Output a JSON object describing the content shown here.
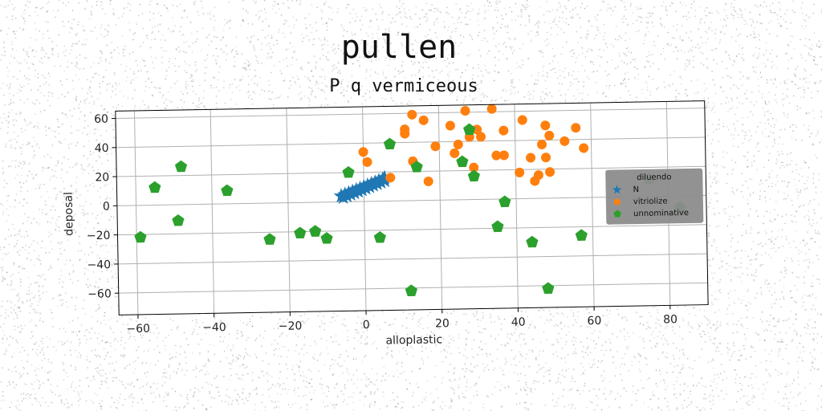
{
  "chart_data": {
    "type": "scatter",
    "title": "pullen",
    "subtitle": "P q vermiceous",
    "xlabel": "alloplastic",
    "ylabel": "deposal",
    "xlim": [
      -65,
      90
    ],
    "ylim": [
      -75,
      65
    ],
    "xticks": [
      -60,
      -40,
      -20,
      0,
      20,
      40,
      60,
      80
    ],
    "yticks": [
      -60,
      -40,
      -20,
      0,
      20,
      40,
      60
    ],
    "grid": true,
    "legend": {
      "title": "diluendo",
      "placement": "center-right",
      "background": "#8c8c8c"
    },
    "series": [
      {
        "name": "N",
        "marker": "star",
        "color": "#1f77b4",
        "points": [
          [
            -6,
            4
          ],
          [
            -5,
            5
          ],
          [
            -4,
            6
          ],
          [
            -3,
            7
          ],
          [
            -2,
            8
          ],
          [
            -1,
            9
          ],
          [
            0,
            10
          ],
          [
            1,
            11
          ],
          [
            2,
            12
          ],
          [
            3,
            13
          ],
          [
            4,
            14
          ],
          [
            5,
            15
          ],
          [
            5.5,
            16
          ],
          [
            -5.5,
            3
          ],
          [
            -4.5,
            4
          ],
          [
            -3.5,
            5
          ],
          [
            -2.5,
            6
          ],
          [
            -1.5,
            7
          ],
          [
            -0.5,
            8
          ],
          [
            0.5,
            9
          ],
          [
            1.5,
            10
          ],
          [
            2.5,
            11
          ],
          [
            3.5,
            12
          ],
          [
            4.5,
            13
          ],
          [
            5.5,
            14
          ]
        ]
      },
      {
        "name": "vitriolize",
        "marker": "circle",
        "color": "#ff7f0e",
        "points": [
          [
            0,
            34
          ],
          [
            1,
            27
          ],
          [
            7,
            16
          ],
          [
            11,
            49
          ],
          [
            11,
            46
          ],
          [
            13,
            59
          ],
          [
            13,
            27
          ],
          [
            16,
            55
          ],
          [
            17,
            13
          ],
          [
            19,
            37
          ],
          [
            23,
            51
          ],
          [
            24,
            32
          ],
          [
            25,
            38
          ],
          [
            27,
            61
          ],
          [
            28,
            43
          ],
          [
            29,
            22
          ],
          [
            30,
            48
          ],
          [
            31,
            43
          ],
          [
            34,
            62
          ],
          [
            35,
            30
          ],
          [
            37,
            30
          ],
          [
            37,
            47
          ],
          [
            41,
            18
          ],
          [
            42,
            54
          ],
          [
            44,
            28
          ],
          [
            45,
            12
          ],
          [
            46,
            16
          ],
          [
            47,
            37
          ],
          [
            48,
            50
          ],
          [
            48,
            28
          ],
          [
            49,
            43
          ],
          [
            49,
            18
          ],
          [
            53,
            39
          ],
          [
            56,
            48
          ],
          [
            58,
            34
          ]
        ]
      },
      {
        "name": "unnominative",
        "marker": "pentagon",
        "color": "#2ca02c",
        "points": [
          [
            -59,
            -22
          ],
          [
            -55,
            12
          ],
          [
            -49,
            -11
          ],
          [
            -48,
            26
          ],
          [
            -36,
            9
          ],
          [
            -25,
            -25
          ],
          [
            -17,
            -21
          ],
          [
            -13,
            -20
          ],
          [
            -10,
            -25
          ],
          [
            -4,
            20
          ],
          [
            4,
            -25
          ],
          [
            7,
            39
          ],
          [
            12,
            -62
          ],
          [
            14,
            23
          ],
          [
            26,
            26
          ],
          [
            28,
            48
          ],
          [
            29,
            16
          ],
          [
            35,
            -19
          ],
          [
            37,
            -2
          ],
          [
            44,
            -30
          ],
          [
            48,
            -62
          ],
          [
            57,
            -26
          ],
          [
            75,
            12
          ],
          [
            83,
            -8
          ]
        ]
      }
    ]
  }
}
